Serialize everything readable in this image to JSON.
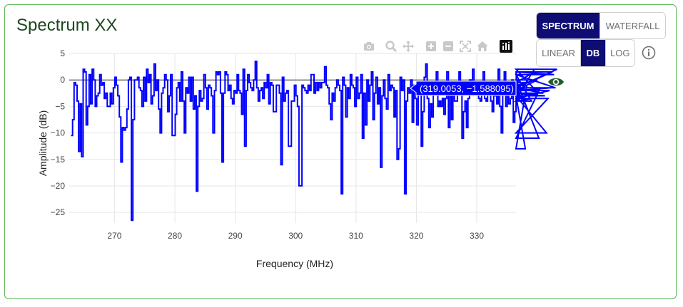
{
  "card": {
    "title": "Spectrum XX"
  },
  "view_toggle": {
    "spectrum_label": "SPECTRUM",
    "waterfall_label": "WATERFALL",
    "active": "SPECTRUM"
  },
  "scale_toggle": {
    "linear_label": "LINEAR",
    "db_label": "DB",
    "log_label": "LOG",
    "active": "DB"
  },
  "icons": {
    "info": "info-circle-icon",
    "visibility": "eye-icon",
    "modebar": [
      "camera-icon",
      "zoom-icon",
      "pan-icon",
      "zoom-in-icon",
      "zoom-out-icon",
      "autoscale-icon",
      "reset-axes-icon",
      "plotly-logo-icon"
    ]
  },
  "colors": {
    "trace": "#0000ff",
    "active_button": "#0d0d73",
    "card_border": "#5cb85c",
    "title": "#1e4620",
    "eye": "#1e5c2e"
  },
  "tooltip": {
    "text": "(319.0053, −1.588095)",
    "x": 319.0053,
    "y": -1.588095
  },
  "chart_data": {
    "type": "line",
    "line_shape": "step",
    "xlabel": "Frequency (MHz)",
    "ylabel": "Amplitude (dB)",
    "xlim": [
      262.5,
      336.5
    ],
    "ylim": [
      -27,
      5
    ],
    "grid": true,
    "x_ticks": [
      270,
      280,
      290,
      300,
      310,
      320,
      330
    ],
    "x_tick_labels": [
      "270",
      "280",
      "290",
      "300",
      "310",
      "320",
      "330"
    ],
    "y_ticks": [
      5,
      0,
      -5,
      -10,
      -15,
      -20,
      -25
    ],
    "y_tick_labels": [
      "5",
      "0",
      "−5",
      "−10",
      "−15",
      "−20",
      "−25"
    ],
    "series": [
      {
        "x_start": 262.8,
        "x_step": 0.25,
        "values": [
          -10.5,
          -7.5,
          -0.5,
          -1,
          -4,
          -13.5,
          -4.5,
          -14.5,
          2,
          1.5,
          -8.5,
          -5,
          1,
          -4.5,
          2,
          0,
          -5,
          -3,
          -2.5,
          1,
          -1,
          -0.5,
          -3.5,
          -2.5,
          -5,
          -5,
          -2.5,
          -4.5,
          -1.5,
          0.5,
          -1,
          -3,
          -7,
          -15.5,
          -9,
          -9.5,
          -9,
          -5.5,
          0,
          0.5,
          -26.5,
          -7.5,
          0,
          0,
          0.5,
          -1.5,
          -2,
          -5,
          0.5,
          -4,
          2,
          -0.5,
          1,
          -4.5,
          -3,
          3,
          -2,
          0,
          -5.5,
          -10,
          -2.5,
          -1.5,
          1,
          0,
          -6,
          -3,
          1,
          -10.5,
          -10.5,
          -6.5,
          -1.5,
          -0.5,
          -4,
          1.5,
          -4,
          -10,
          -1.5,
          -2.5,
          0.5,
          -4,
          0.5,
          -5.5,
          -3,
          -21,
          -5,
          -2,
          -4,
          -3.5,
          1,
          -1.5,
          -5.5,
          -1,
          -1.5,
          -3,
          -10,
          -2,
          1.5,
          1,
          1.5,
          -2.5,
          -15.5,
          -2.5,
          1.5,
          1,
          -2,
          -1,
          -3.5,
          -4.5,
          -2,
          -2.5,
          1,
          -2,
          -2.5,
          -6.5,
          2,
          -12.5,
          -2,
          1,
          -0.5,
          -1.5,
          -2,
          0,
          3.5,
          -1.5,
          -4,
          -2,
          -1.5,
          -3.5,
          -0.5,
          -1.5,
          1,
          -4.5,
          -0.5,
          -1,
          -6,
          -6,
          -1,
          -1,
          -2.5,
          -16,
          0.5,
          -4,
          -2.5,
          -2,
          -12.5,
          -12.5,
          -4,
          -4,
          -1,
          -3,
          -5,
          -20,
          -20,
          -1,
          -1.5,
          -2,
          -2.5,
          -1,
          -2,
          1,
          1,
          -2.5,
          -0.5,
          -2,
          -0.5,
          -1.5,
          -0.5,
          -0.5,
          2.5,
          -1,
          -1.5,
          -4.5,
          -7.5,
          -2.5,
          -4,
          -1.5,
          0,
          -1,
          -2,
          -21.5,
          0.5,
          -1,
          -7,
          -1.5,
          -3.5,
          1,
          -1,
          -1.5,
          -5,
          0.5,
          -3.5,
          -2.5,
          1,
          -11,
          -2.5,
          -8.5,
          0,
          -4,
          -1,
          1.5,
          -7.5,
          -2.5,
          0.5,
          -4.5,
          -1.5,
          -16.5,
          -3,
          0,
          -3.5,
          -5.5,
          1,
          -2,
          -1,
          -1.5,
          -7,
          -2,
          -15,
          -13,
          0.5,
          -2,
          0,
          -21.5,
          -4,
          -1.5,
          -2.5,
          0,
          -8,
          -1,
          -3.5,
          -8.5,
          -1,
          -0.5,
          -12.5,
          -6,
          0.5,
          3,
          -3.5,
          -9,
          -4.5,
          -7,
          -1.5,
          -0.5,
          1.5,
          -5,
          -4,
          -5,
          -3.5,
          -6.5,
          -3.5,
          1.5,
          -9,
          -1,
          -7.5,
          -1,
          -4,
          -4,
          -0.5,
          1.5,
          -2,
          -11,
          -6,
          -4,
          -9,
          -3.5,
          0,
          -2,
          2,
          -0.5,
          -1.5,
          -1.5,
          -3.5,
          -4,
          -2.5,
          1.5,
          -3.5,
          -4,
          -2,
          -0.5,
          -4,
          -6,
          -3,
          -0.5,
          -4.5,
          2,
          -5,
          -10,
          -2,
          1.5,
          -5,
          -1,
          -4.5,
          -3.5,
          0,
          -8,
          -6,
          1.5,
          -4,
          -3,
          -1,
          -4,
          -3,
          -13,
          -1,
          -0.5,
          1,
          -4,
          -3.5,
          2,
          -2,
          0,
          -11,
          -1.5,
          -1.5,
          -2.5,
          -3,
          -10,
          -3.5,
          -2,
          -1.5,
          1.5,
          1,
          -1.5,
          2
        ]
      }
    ]
  }
}
